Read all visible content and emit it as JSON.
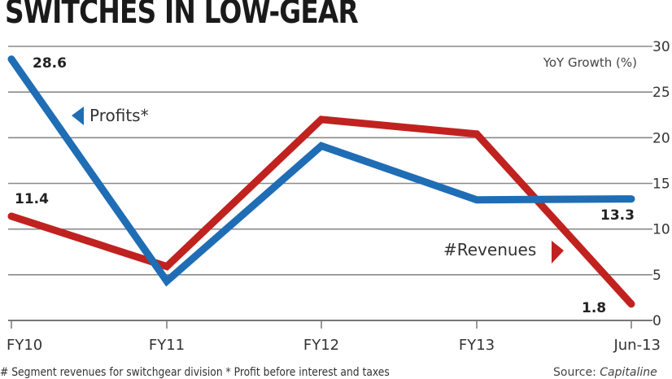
{
  "chart_data": {
    "type": "line",
    "title": "SWITCHES IN LOW-GEAR",
    "xlabel": "",
    "ylabel": "YoY Growth (%)",
    "categories": [
      "FY10",
      "FY11",
      "FY12",
      "FY13",
      "Jun-13"
    ],
    "ylim": [
      0,
      30
    ],
    "yticks": [
      0,
      5,
      10,
      15,
      20,
      25,
      30
    ],
    "ytick_labels": [
      "0",
      "5",
      "10",
      "15",
      "20",
      "25",
      "30"
    ],
    "grid": true,
    "y_axis_side": "right",
    "series": [
      {
        "name": "Profits*",
        "color": "#1f6db5",
        "values": [
          28.6,
          4.3,
          19.1,
          13.2,
          13.3
        ],
        "data_labels": {
          "0": "28.6",
          "4": "13.3"
        },
        "legend_arrow": "left"
      },
      {
        "name": "#Revenues",
        "color": "#c0221f",
        "values": [
          11.4,
          5.9,
          22.0,
          20.4,
          1.8
        ],
        "data_labels": {
          "0": "11.4",
          "4": "1.8"
        },
        "legend_arrow": "right"
      }
    ],
    "footnote": "# Segment revenues for switchgear division * Profit before interest and taxes",
    "source_prefix": "Source: ",
    "source_name": "Capitaline"
  }
}
